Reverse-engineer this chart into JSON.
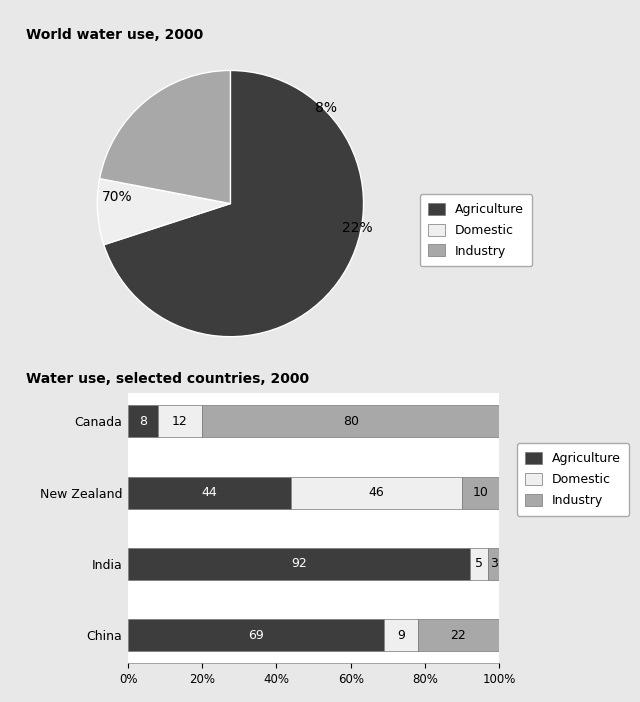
{
  "pie_title": "World water use, 2000",
  "pie_values": [
    70,
    8,
    22
  ],
  "pie_labels": [
    "70%",
    "8%",
    "22%"
  ],
  "pie_colors": [
    "#3d3d3d",
    "#efefef",
    "#a8a8a8"
  ],
  "pie_categories": [
    "Agriculture",
    "Domestic",
    "Industry"
  ],
  "bar_title": "Water use, selected countries, 2000",
  "countries": [
    "China",
    "India",
    "New Zealand",
    "Canada"
  ],
  "agriculture": [
    69,
    92,
    44,
    8
  ],
  "domestic": [
    9,
    5,
    46,
    12
  ],
  "industry": [
    22,
    3,
    10,
    80
  ],
  "bar_colors_ag": "#3d3d3d",
  "bar_colors_dom": "#efefef",
  "bar_colors_ind": "#a8a8a8",
  "bar_edgecolor": "#777777",
  "background_color": "#ffffff",
  "outer_bg": "#e8e8e8"
}
